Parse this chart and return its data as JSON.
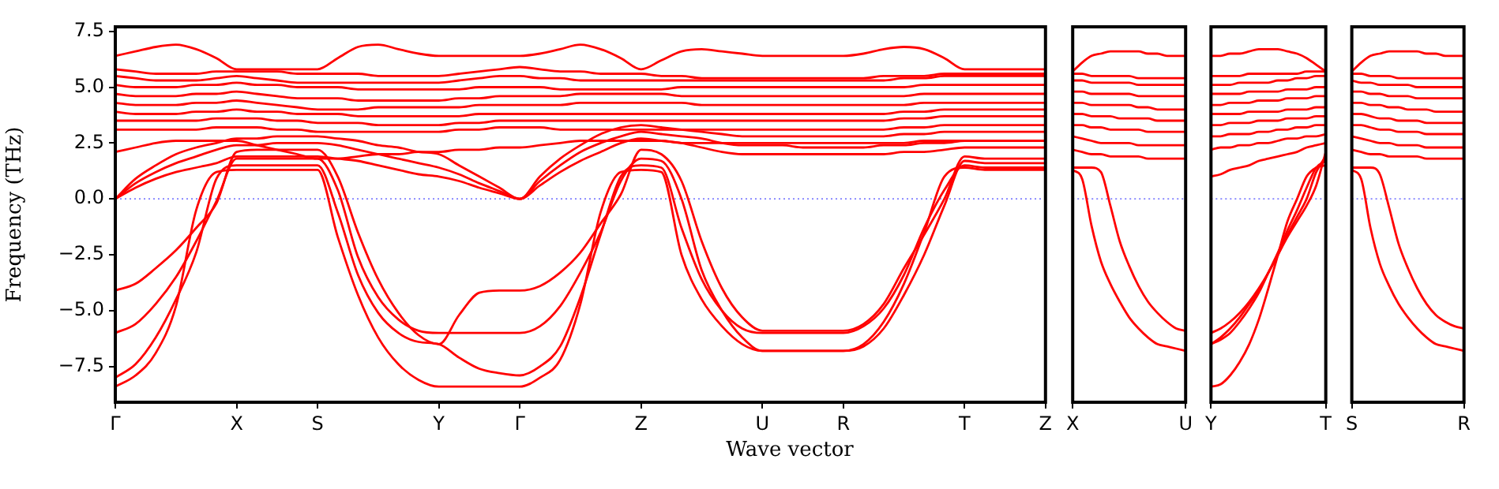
{
  "chart_data": [
    {
      "type": "line",
      "color": "#ff0000",
      "ylabel": "Frequency (THz)",
      "xlabel": "Wave vector",
      "ylim": [
        -9.1,
        7.7
      ],
      "categories": [
        "Γ",
        null,
        null,
        null,
        null,
        null,
        "X",
        null,
        null,
        null,
        "S",
        null,
        null,
        null,
        null,
        null,
        "Y",
        null,
        null,
        null,
        "Γ",
        null,
        null,
        null,
        null,
        null,
        "Z",
        null,
        null,
        null,
        null,
        null,
        "U",
        null,
        null,
        null,
        "R",
        null,
        null,
        null,
        null,
        null,
        "T",
        null,
        null,
        null,
        "Z"
      ],
      "yticks": [
        {
          "value": -7.5,
          "label": "−7.5"
        },
        {
          "value": -5,
          "label": "−5.0"
        },
        {
          "value": -2.5,
          "label": "−2.5"
        },
        {
          "value": 0,
          "label": "0.0"
        },
        2.5,
        {
          "value": 5,
          "label": "5.0"
        },
        7.5
      ],
      "ref_lines": [
        {
          "axis": "y",
          "value": 0,
          "color": "#7f7fff",
          "line_style": "dotted"
        }
      ],
      "series": [
        {
          "values": [
            -8.4,
            -7.9,
            -6.9,
            -4.8,
            -0.5,
            1.2,
            1.3,
            1.3,
            1.3,
            1.3,
            1.3,
            -1.7,
            -4.3,
            -6.2,
            -7.4,
            -8.1,
            -8.4,
            -8.4,
            -8.4,
            -8.4,
            -8.4,
            -8.0,
            -7.2,
            -4.7,
            -0.6,
            1.2,
            1.3,
            1.2,
            -2.5,
            -4.5,
            -5.7,
            -6.5,
            -6.8,
            -6.8,
            -6.8,
            -6.8,
            -6.8,
            -6.5,
            -5.5,
            -3.8,
            -1.5,
            1.0,
            1.4,
            1.3,
            1.3,
            1.3,
            1.3
          ]
        },
        {
          "values": [
            -8.0,
            -7.4,
            -6.2,
            -4.5,
            -2.4,
            0.9,
            1.5,
            1.5,
            1.5,
            1.5,
            1.5,
            -0.6,
            -3.4,
            -5.1,
            -6.0,
            -6.4,
            -6.5,
            -7.1,
            -7.6,
            -7.8,
            -7.9,
            -7.5,
            -6.6,
            -4.4,
            -1.6,
            1.0,
            1.5,
            1.4,
            -1.3,
            -3.6,
            -5.0,
            -5.8,
            -6.0,
            -6.0,
            -6.0,
            -6.0,
            -6.0,
            -5.7,
            -4.9,
            -3.4,
            -1.3,
            0.4,
            1.5,
            1.4,
            1.4,
            1.4,
            1.4
          ]
        },
        {
          "values": [
            -6.0,
            -5.6,
            -4.7,
            -3.5,
            -1.9,
            -0.1,
            1.8,
            1.8,
            1.8,
            1.8,
            1.8,
            0.4,
            -2.6,
            -4.4,
            -5.4,
            -5.9,
            -6.0,
            -6.0,
            -6.0,
            -6.0,
            -6.0,
            -5.7,
            -4.8,
            -3.3,
            -1.5,
            0.8,
            1.8,
            1.7,
            0.0,
            -3.2,
            -5.0,
            -6.2,
            -6.8,
            -6.8,
            -6.8,
            -6.8,
            -6.8,
            -6.6,
            -5.8,
            -4.3,
            -2.5,
            -0.3,
            1.7,
            1.6,
            1.6,
            1.6,
            1.6
          ]
        },
        {
          "values": [
            -4.1,
            -3.8,
            -3.1,
            -2.3,
            -1.3,
            -0.2,
            2.1,
            2.2,
            2.2,
            2.2,
            2.2,
            1.0,
            -1.5,
            -3.6,
            -5.1,
            -6.1,
            -6.5,
            -5.2,
            -4.2,
            -4.1,
            -4.1,
            -3.9,
            -3.3,
            -2.4,
            -1.1,
            0.2,
            2.2,
            2.0,
            0.8,
            -1.9,
            -4.0,
            -5.3,
            -5.9,
            -5.9,
            -5.9,
            -5.9,
            -5.9,
            -5.6,
            -4.7,
            -3.1,
            -1.6,
            0.0,
            1.9,
            1.8,
            1.8,
            1.8,
            1.8
          ]
        },
        {
          "values": [
            0,
            0.5,
            0.9,
            1.2,
            1.4,
            1.6,
            1.9,
            1.9,
            1.9,
            1.9,
            1.9,
            1.8,
            1.7,
            1.5,
            1.3,
            1.1,
            1.0,
            0.8,
            0.5,
            0.25,
            0,
            0.6,
            1.2,
            1.7,
            2.1,
            2.5,
            2.7,
            2.6,
            2.5,
            2.3,
            2.1,
            2.0,
            2.0,
            2.0,
            2.0,
            2.0,
            2.0,
            2.0,
            2.0,
            2.1,
            2.1,
            2.2,
            2.3,
            2.3,
            2.3,
            2.3,
            2.3
          ]
        },
        {
          "values": [
            0,
            0.7,
            1.2,
            1.6,
            1.9,
            2.2,
            2.4,
            2.4,
            2.5,
            2.5,
            2.5,
            2.4,
            2.2,
            2.0,
            1.8,
            1.6,
            1.4,
            1.1,
            0.7,
            0.35,
            0,
            0.8,
            1.5,
            2.1,
            2.5,
            2.8,
            3.0,
            2.9,
            2.8,
            2.7,
            2.5,
            2.4,
            2.4,
            2.4,
            2.3,
            2.3,
            2.3,
            2.3,
            2.4,
            2.4,
            2.5,
            2.5,
            2.6,
            2.6,
            2.6,
            2.6,
            2.6
          ]
        },
        {
          "values": [
            0,
            0.9,
            1.5,
            2.0,
            2.3,
            2.5,
            2.7,
            2.7,
            2.8,
            2.8,
            2.8,
            2.7,
            2.6,
            2.4,
            2.3,
            2.1,
            2.0,
            1.5,
            1.0,
            0.5,
            0,
            1.0,
            1.8,
            2.4,
            2.9,
            3.2,
            3.3,
            3.2,
            3.1,
            3.0,
            2.9,
            2.8,
            2.8,
            2.8,
            2.8,
            2.8,
            2.8,
            2.8,
            2.8,
            2.9,
            2.9,
            3.0,
            3.0,
            3.0,
            3.0,
            3.0,
            3.0
          ]
        },
        {
          "values": [
            6.4,
            6.6,
            6.8,
            6.9,
            6.7,
            6.3,
            5.8,
            5.8,
            5.8,
            5.8,
            5.8,
            6.3,
            6.8,
            6.9,
            6.7,
            6.5,
            6.4,
            6.4,
            6.4,
            6.4,
            6.4,
            6.5,
            6.7,
            6.9,
            6.7,
            6.3,
            5.8,
            6.2,
            6.6,
            6.7,
            6.6,
            6.5,
            6.4,
            6.4,
            6.4,
            6.4,
            6.4,
            6.5,
            6.7,
            6.8,
            6.7,
            6.3,
            5.8,
            5.8,
            5.8,
            5.8,
            5.8
          ]
        },
        {
          "values": [
            5.8,
            5.7,
            5.6,
            5.6,
            5.6,
            5.7,
            5.7,
            5.7,
            5.7,
            5.6,
            5.6,
            5.6,
            5.6,
            5.5,
            5.5,
            5.5,
            5.5,
            5.6,
            5.7,
            5.8,
            5.9,
            5.8,
            5.7,
            5.7,
            5.6,
            5.6,
            5.6,
            5.5,
            5.5,
            5.4,
            5.4,
            5.4,
            5.4,
            5.4,
            5.4,
            5.4,
            5.4,
            5.4,
            5.5,
            5.5,
            5.5,
            5.6,
            5.6,
            5.6,
            5.6,
            5.6,
            5.6
          ]
        },
        {
          "values": [
            5.5,
            5.4,
            5.3,
            5.3,
            5.3,
            5.4,
            5.5,
            5.4,
            5.3,
            5.2,
            5.2,
            5.2,
            5.2,
            5.2,
            5.2,
            5.2,
            5.2,
            5.3,
            5.4,
            5.5,
            5.5,
            5.4,
            5.4,
            5.3,
            5.3,
            5.3,
            5.3,
            5.3,
            5.3,
            5.3,
            5.3,
            5.3,
            5.3,
            5.3,
            5.3,
            5.3,
            5.3,
            5.3,
            5.3,
            5.4,
            5.4,
            5.5,
            5.5,
            5.5,
            5.5,
            5.5,
            5.5
          ]
        },
        {
          "values": [
            5.1,
            5.0,
            5.0,
            5.0,
            5.1,
            5.1,
            5.2,
            5.1,
            5.1,
            5.0,
            5.0,
            5.0,
            4.9,
            4.9,
            4.9,
            4.9,
            4.9,
            4.9,
            5.0,
            5.0,
            5.0,
            5.0,
            4.9,
            4.9,
            4.9,
            4.9,
            4.9,
            4.9,
            5.0,
            5.0,
            5.0,
            5.0,
            5.0,
            5.0,
            5.0,
            5.0,
            5.0,
            5.0,
            5.0,
            5.0,
            5.1,
            5.1,
            5.1,
            5.1,
            5.1,
            5.1,
            5.1
          ]
        },
        {
          "values": [
            4.7,
            4.6,
            4.6,
            4.6,
            4.7,
            4.7,
            4.8,
            4.7,
            4.6,
            4.5,
            4.5,
            4.5,
            4.4,
            4.4,
            4.4,
            4.4,
            4.4,
            4.5,
            4.5,
            4.6,
            4.6,
            4.6,
            4.6,
            4.7,
            4.7,
            4.7,
            4.7,
            4.7,
            4.6,
            4.6,
            4.6,
            4.6,
            4.6,
            4.6,
            4.6,
            4.6,
            4.6,
            4.6,
            4.6,
            4.6,
            4.7,
            4.7,
            4.7,
            4.7,
            4.7,
            4.7,
            4.7
          ]
        },
        {
          "values": [
            4.3,
            4.2,
            4.2,
            4.2,
            4.3,
            4.3,
            4.4,
            4.3,
            4.2,
            4.1,
            4.0,
            4.0,
            4.0,
            4.1,
            4.1,
            4.1,
            4.1,
            4.1,
            4.2,
            4.2,
            4.2,
            4.2,
            4.2,
            4.3,
            4.3,
            4.3,
            4.3,
            4.3,
            4.3,
            4.2,
            4.2,
            4.2,
            4.2,
            4.2,
            4.2,
            4.2,
            4.2,
            4.2,
            4.2,
            4.2,
            4.3,
            4.3,
            4.3,
            4.3,
            4.3,
            4.3,
            4.3
          ]
        },
        {
          "values": [
            3.9,
            3.8,
            3.8,
            3.8,
            3.9,
            3.9,
            4.0,
            3.9,
            3.9,
            3.8,
            3.8,
            3.8,
            3.7,
            3.7,
            3.7,
            3.7,
            3.7,
            3.7,
            3.8,
            3.8,
            3.8,
            3.8,
            3.8,
            3.8,
            3.8,
            3.8,
            3.8,
            3.8,
            3.8,
            3.8,
            3.8,
            3.8,
            3.8,
            3.8,
            3.8,
            3.8,
            3.8,
            3.8,
            3.8,
            3.9,
            3.9,
            4.0,
            4.0,
            4.0,
            4.0,
            4.0,
            4.0
          ]
        },
        {
          "values": [
            3.5,
            3.5,
            3.5,
            3.5,
            3.5,
            3.6,
            3.6,
            3.6,
            3.5,
            3.5,
            3.4,
            3.4,
            3.4,
            3.3,
            3.3,
            3.3,
            3.3,
            3.4,
            3.4,
            3.5,
            3.5,
            3.5,
            3.5,
            3.5,
            3.5,
            3.5,
            3.5,
            3.5,
            3.5,
            3.5,
            3.5,
            3.5,
            3.5,
            3.5,
            3.5,
            3.5,
            3.5,
            3.5,
            3.5,
            3.6,
            3.6,
            3.7,
            3.7,
            3.7,
            3.7,
            3.7,
            3.7
          ]
        },
        {
          "values": [
            3.1,
            3.1,
            3.1,
            3.1,
            3.1,
            3.2,
            3.2,
            3.2,
            3.1,
            3.1,
            3.0,
            3.0,
            3.0,
            3.0,
            3.0,
            3.0,
            3.0,
            3.1,
            3.1,
            3.2,
            3.2,
            3.2,
            3.1,
            3.1,
            3.1,
            3.1,
            3.1,
            3.1,
            3.1,
            3.1,
            3.1,
            3.1,
            3.1,
            3.1,
            3.1,
            3.1,
            3.1,
            3.1,
            3.1,
            3.2,
            3.2,
            3.3,
            3.3,
            3.3,
            3.3,
            3.3,
            3.3
          ]
        },
        {
          "values": [
            2.1,
            2.3,
            2.5,
            2.6,
            2.6,
            2.6,
            2.6,
            2.4,
            2.2,
            2.0,
            1.8,
            1.8,
            1.9,
            2.0,
            2.0,
            2.1,
            2.1,
            2.2,
            2.2,
            2.3,
            2.3,
            2.4,
            2.5,
            2.6,
            2.6,
            2.6,
            2.6,
            2.6,
            2.5,
            2.5,
            2.5,
            2.5,
            2.5,
            2.5,
            2.5,
            2.5,
            2.5,
            2.5,
            2.5,
            2.5,
            2.6,
            2.6,
            2.6,
            2.6,
            2.6,
            2.6,
            2.6
          ]
        }
      ]
    },
    {
      "type": "line",
      "color": "#ff0000",
      "tick_labels": "x",
      "ylim": [
        -9.1,
        7.7
      ],
      "categories": [
        "X",
        null,
        null,
        null,
        null,
        null,
        null,
        null,
        null,
        null,
        null,
        null,
        "U"
      ],
      "ref_lines": [
        {
          "axis": "y",
          "value": 0,
          "color": "#7f7fff",
          "line_style": "dotted"
        }
      ],
      "series": [
        {
          "values": [
            1.3,
            0.9,
            -1.2,
            -2.8,
            -3.8,
            -4.6,
            -5.3,
            -5.8,
            -6.2,
            -6.5,
            -6.6,
            -6.7,
            -6.8
          ]
        },
        {
          "values": [
            1.4,
            1.4,
            1.4,
            1.2,
            -0.3,
            -1.9,
            -3.0,
            -3.9,
            -4.6,
            -5.1,
            -5.5,
            -5.8,
            -5.9
          ]
        },
        {
          "values": [
            5.7,
            6.1,
            6.4,
            6.5,
            6.6,
            6.6,
            6.6,
            6.6,
            6.5,
            6.5,
            6.4,
            6.4,
            6.4
          ]
        },
        {
          "values": [
            5.6,
            5.6,
            5.5,
            5.5,
            5.5,
            5.5,
            5.5,
            5.4,
            5.4,
            5.4,
            5.4,
            5.4,
            5.4
          ]
        },
        {
          "values": [
            5.3,
            5.3,
            5.2,
            5.2,
            5.2,
            5.2,
            5.2,
            5.1,
            5.1,
            5.1,
            5.1,
            5.1,
            5.1
          ]
        },
        {
          "values": [
            4.8,
            4.8,
            4.7,
            4.7,
            4.7,
            4.7,
            4.7,
            4.6,
            4.6,
            4.6,
            4.6,
            4.6,
            4.6
          ]
        },
        {
          "values": [
            4.3,
            4.3,
            4.2,
            4.2,
            4.2,
            4.2,
            4.2,
            4.1,
            4.1,
            4.0,
            4.0,
            4.0,
            4.0
          ]
        },
        {
          "values": [
            3.8,
            3.8,
            3.7,
            3.7,
            3.7,
            3.6,
            3.6,
            3.6,
            3.6,
            3.5,
            3.5,
            3.5,
            3.5
          ]
        },
        {
          "values": [
            3.3,
            3.3,
            3.2,
            3.2,
            3.1,
            3.1,
            3.1,
            3.1,
            3.0,
            3.0,
            3.0,
            3.0,
            3.0
          ]
        },
        {
          "values": [
            2.8,
            2.7,
            2.6,
            2.5,
            2.5,
            2.5,
            2.5,
            2.4,
            2.4,
            2.4,
            2.4,
            2.4,
            2.4
          ]
        },
        {
          "values": [
            2.2,
            2.1,
            2.0,
            2.0,
            1.9,
            1.9,
            1.9,
            1.9,
            1.8,
            1.8,
            1.8,
            1.8,
            1.8
          ]
        }
      ]
    },
    {
      "type": "line",
      "color": "#ff0000",
      "tick_labels": "x",
      "ylim": [
        -9.1,
        7.7
      ],
      "categories": [
        "Y",
        null,
        null,
        null,
        null,
        null,
        null,
        null,
        null,
        null,
        null,
        null,
        "T"
      ],
      "ref_lines": [
        {
          "axis": "y",
          "value": 0,
          "color": "#7f7fff",
          "line_style": "dotted"
        }
      ],
      "series": [
        {
          "values": [
            -8.4,
            -8.3,
            -7.9,
            -7.3,
            -6.5,
            -5.4,
            -4.0,
            -2.5,
            -1.0,
            0.0,
            1.0,
            1.4,
            1.5
          ]
        },
        {
          "values": [
            -6.5,
            -6.3,
            -6.0,
            -5.5,
            -4.9,
            -4.2,
            -3.3,
            -2.4,
            -1.4,
            -0.5,
            0.5,
            1.4,
            1.7
          ]
        },
        {
          "values": [
            -6.0,
            -5.8,
            -5.5,
            -5.1,
            -4.6,
            -4.0,
            -3.3,
            -2.5,
            -1.6,
            -0.8,
            0.0,
            1.2,
            1.9
          ]
        },
        {
          "values": [
            -6.5,
            -6.2,
            -5.8,
            -5.3,
            -4.7,
            -4.1,
            -3.3,
            -2.5,
            -1.7,
            -1.0,
            -0.3,
            0.6,
            2.1
          ]
        },
        {
          "values": [
            6.4,
            6.4,
            6.5,
            6.5,
            6.6,
            6.7,
            6.7,
            6.7,
            6.6,
            6.5,
            6.3,
            6.0,
            5.7
          ]
        },
        {
          "values": [
            5.5,
            5.5,
            5.5,
            5.5,
            5.6,
            5.6,
            5.6,
            5.6,
            5.6,
            5.6,
            5.7,
            5.7,
            5.7
          ]
        },
        {
          "values": [
            5.1,
            5.1,
            5.1,
            5.2,
            5.2,
            5.2,
            5.2,
            5.3,
            5.3,
            5.4,
            5.4,
            5.5,
            5.5
          ]
        },
        {
          "values": [
            4.7,
            4.7,
            4.7,
            4.7,
            4.8,
            4.8,
            4.8,
            4.8,
            4.9,
            4.9,
            4.9,
            5.0,
            5.0
          ]
        },
        {
          "values": [
            4.2,
            4.2,
            4.3,
            4.3,
            4.3,
            4.4,
            4.4,
            4.4,
            4.5,
            4.5,
            4.5,
            4.6,
            4.6
          ]
        },
        {
          "values": [
            3.8,
            3.8,
            3.8,
            3.8,
            3.9,
            3.9,
            3.9,
            3.9,
            4.0,
            4.0,
            4.0,
            4.1,
            4.1
          ]
        },
        {
          "values": [
            3.3,
            3.3,
            3.4,
            3.4,
            3.4,
            3.5,
            3.5,
            3.5,
            3.6,
            3.6,
            3.6,
            3.7,
            3.7
          ]
        },
        {
          "values": [
            2.8,
            2.8,
            2.9,
            2.9,
            2.9,
            3.0,
            3.0,
            3.1,
            3.1,
            3.2,
            3.2,
            3.3,
            3.3
          ]
        },
        {
          "values": [
            2.2,
            2.3,
            2.3,
            2.4,
            2.4,
            2.5,
            2.5,
            2.6,
            2.7,
            2.7,
            2.8,
            2.8,
            2.9
          ]
        },
        {
          "values": [
            1.0,
            1.1,
            1.3,
            1.4,
            1.5,
            1.7,
            1.8,
            1.9,
            2.0,
            2.1,
            2.3,
            2.4,
            2.5
          ]
        }
      ]
    },
    {
      "type": "line",
      "color": "#ff0000",
      "tick_labels": "x",
      "ylim": [
        -9.1,
        7.7
      ],
      "categories": [
        "S",
        null,
        null,
        null,
        null,
        null,
        null,
        null,
        null,
        null,
        null,
        null,
        "R"
      ],
      "ref_lines": [
        {
          "axis": "y",
          "value": 0,
          "color": "#7f7fff",
          "line_style": "dotted"
        }
      ],
      "series": [
        {
          "values": [
            1.3,
            0.9,
            -1.3,
            -2.9,
            -3.9,
            -4.7,
            -5.3,
            -5.8,
            -6.2,
            -6.5,
            -6.6,
            -6.7,
            -6.8
          ]
        },
        {
          "values": [
            1.4,
            1.4,
            1.4,
            1.1,
            -0.4,
            -2.0,
            -3.1,
            -4.0,
            -4.7,
            -5.2,
            -5.5,
            -5.7,
            -5.8
          ]
        },
        {
          "values": [
            5.7,
            6.1,
            6.4,
            6.5,
            6.6,
            6.6,
            6.6,
            6.6,
            6.5,
            6.5,
            6.4,
            6.4,
            6.4
          ]
        },
        {
          "values": [
            5.6,
            5.6,
            5.5,
            5.5,
            5.5,
            5.4,
            5.4,
            5.4,
            5.4,
            5.4,
            5.4,
            5.4,
            5.4
          ]
        },
        {
          "values": [
            5.3,
            5.2,
            5.2,
            5.1,
            5.1,
            5.1,
            5.1,
            5.0,
            5.0,
            5.0,
            5.0,
            5.0,
            5.0
          ]
        },
        {
          "values": [
            4.8,
            4.8,
            4.7,
            4.7,
            4.6,
            4.6,
            4.6,
            4.5,
            4.5,
            4.5,
            4.5,
            4.5,
            4.5
          ]
        },
        {
          "values": [
            4.3,
            4.3,
            4.2,
            4.2,
            4.1,
            4.1,
            4.0,
            4.0,
            4.0,
            3.9,
            3.9,
            3.9,
            3.9
          ]
        },
        {
          "values": [
            3.8,
            3.8,
            3.7,
            3.6,
            3.6,
            3.5,
            3.5,
            3.5,
            3.4,
            3.4,
            3.4,
            3.4,
            3.4
          ]
        },
        {
          "values": [
            3.3,
            3.3,
            3.2,
            3.1,
            3.1,
            3.0,
            3.0,
            3.0,
            2.9,
            2.9,
            2.9,
            2.9,
            2.9
          ]
        },
        {
          "values": [
            2.8,
            2.7,
            2.6,
            2.5,
            2.5,
            2.4,
            2.4,
            2.4,
            2.3,
            2.3,
            2.3,
            2.3,
            2.3
          ]
        },
        {
          "values": [
            2.2,
            2.1,
            2.0,
            2.0,
            1.9,
            1.9,
            1.9,
            1.9,
            1.8,
            1.8,
            1.8,
            1.8,
            1.8
          ]
        }
      ]
    }
  ]
}
